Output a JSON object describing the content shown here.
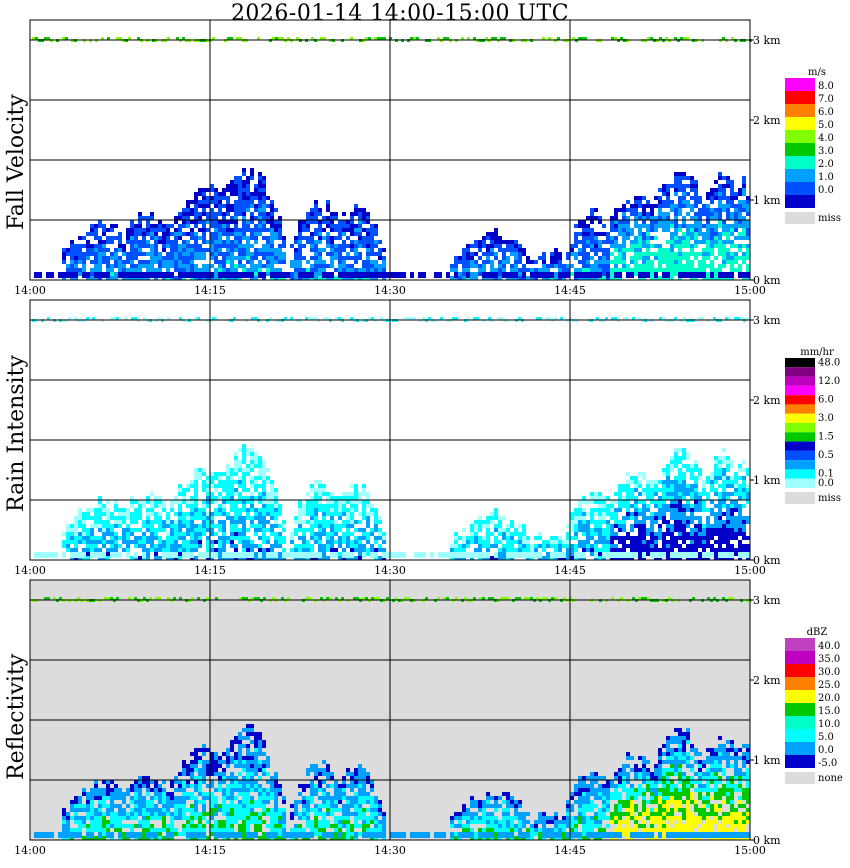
{
  "title": "2026-01-14   14:00-15:00 UTC",
  "chart_data": [
    {
      "type": "heatmap",
      "title": "Fall Velocity",
      "x_ticks": [
        "14:00",
        "14:15",
        "14:30",
        "14:45",
        "15:00"
      ],
      "y_ticks": [
        "0 km",
        "1 km",
        "2 km",
        "3 km"
      ],
      "ylim_km": [
        0,
        3.2
      ],
      "grid": true,
      "background": "#ffffff",
      "legend": {
        "unit": "m/s",
        "entries": [
          {
            "label": "8.0",
            "color": "#ff00ff"
          },
          {
            "label": "7.0",
            "color": "#ff0000"
          },
          {
            "label": "6.0",
            "color": "#ff8000"
          },
          {
            "label": "5.0",
            "color": "#ffff00"
          },
          {
            "label": "4.0",
            "color": "#80ff00"
          },
          {
            "label": "3.0",
            "color": "#00c800"
          },
          {
            "label": "2.0",
            "color": "#00ffc8"
          },
          {
            "label": "1.0",
            "color": "#00a0ff"
          },
          {
            "label": "0.0",
            "color": "#0050ff"
          },
          {
            "label": "",
            "color": "#0000c8"
          }
        ],
        "miss_label": "miss",
        "miss_color": "#dcdcdc"
      },
      "cells_note": "echo tops ~1.3 km; mostly 0-2 m/s",
      "palette": [
        "#0000c8",
        "#0050ff",
        "#00a0ff",
        "#00ffc8"
      ],
      "main_color": "#0000c8"
    },
    {
      "type": "heatmap",
      "title": "Rain Intensity",
      "x_ticks": [
        "14:00",
        "14:15",
        "14:30",
        "14:45",
        "15:00"
      ],
      "y_ticks": [
        "0 km",
        "1 km",
        "2 km",
        "3 km"
      ],
      "ylim_km": [
        0,
        3.2
      ],
      "grid": true,
      "background": "#ffffff",
      "legend": {
        "unit": "mm/hr",
        "entries": [
          {
            "label": "48.0",
            "color": "#000000"
          },
          {
            "label": "",
            "color": "#800080"
          },
          {
            "label": "12.0",
            "color": "#c000c0"
          },
          {
            "label": "",
            "color": "#ff00ff"
          },
          {
            "label": "6.0",
            "color": "#ff0000"
          },
          {
            "label": "",
            "color": "#ff8000"
          },
          {
            "label": "3.0",
            "color": "#ffff00"
          },
          {
            "label": "",
            "color": "#80ff00"
          },
          {
            "label": "1.5",
            "color": "#00c800"
          },
          {
            "label": "",
            "color": "#0000c8"
          },
          {
            "label": "0.5",
            "color": "#0050ff"
          },
          {
            "label": "",
            "color": "#00a0ff"
          },
          {
            "label": "0.1",
            "color": "#00ffff"
          },
          {
            "label": "0.0",
            "color": "#a0ffff"
          }
        ],
        "miss_label": "miss",
        "miss_color": "#dcdcdc"
      },
      "palette": [
        "#a0ffff",
        "#00ffff",
        "#00a0ff",
        "#0000c8"
      ],
      "main_color": "#a0ffff"
    },
    {
      "type": "heatmap",
      "title": "Reflectivity",
      "x_ticks": [
        "14:00",
        "14:15",
        "14:30",
        "14:45",
        "15:00"
      ],
      "y_ticks": [
        "0 km",
        "1 km",
        "2 km",
        "3 km"
      ],
      "ylim_km": [
        0,
        3.2
      ],
      "grid": true,
      "background": "#dcdcdc",
      "legend": {
        "unit": "dBZ",
        "entries": [
          {
            "label": "40.0",
            "color": "#c040c0"
          },
          {
            "label": "35.0",
            "color": "#c000c0"
          },
          {
            "label": "30.0",
            "color": "#ff0000"
          },
          {
            "label": "25.0",
            "color": "#ff8000"
          },
          {
            "label": "20.0",
            "color": "#ffff00"
          },
          {
            "label": "15.0",
            "color": "#00c800"
          },
          {
            "label": "10.0",
            "color": "#00ffc8"
          },
          {
            "label": "5.0",
            "color": "#00ffff"
          },
          {
            "label": "0.0",
            "color": "#00a0ff"
          },
          {
            "label": "-5.0",
            "color": "#0000c8"
          }
        ],
        "miss_label": "none",
        "miss_color": "#dcdcdc"
      },
      "palette": [
        "#0000c8",
        "#00a0ff",
        "#00ffff",
        "#00c800",
        "#ffff00"
      ],
      "main_color": "#00a0ff"
    }
  ]
}
